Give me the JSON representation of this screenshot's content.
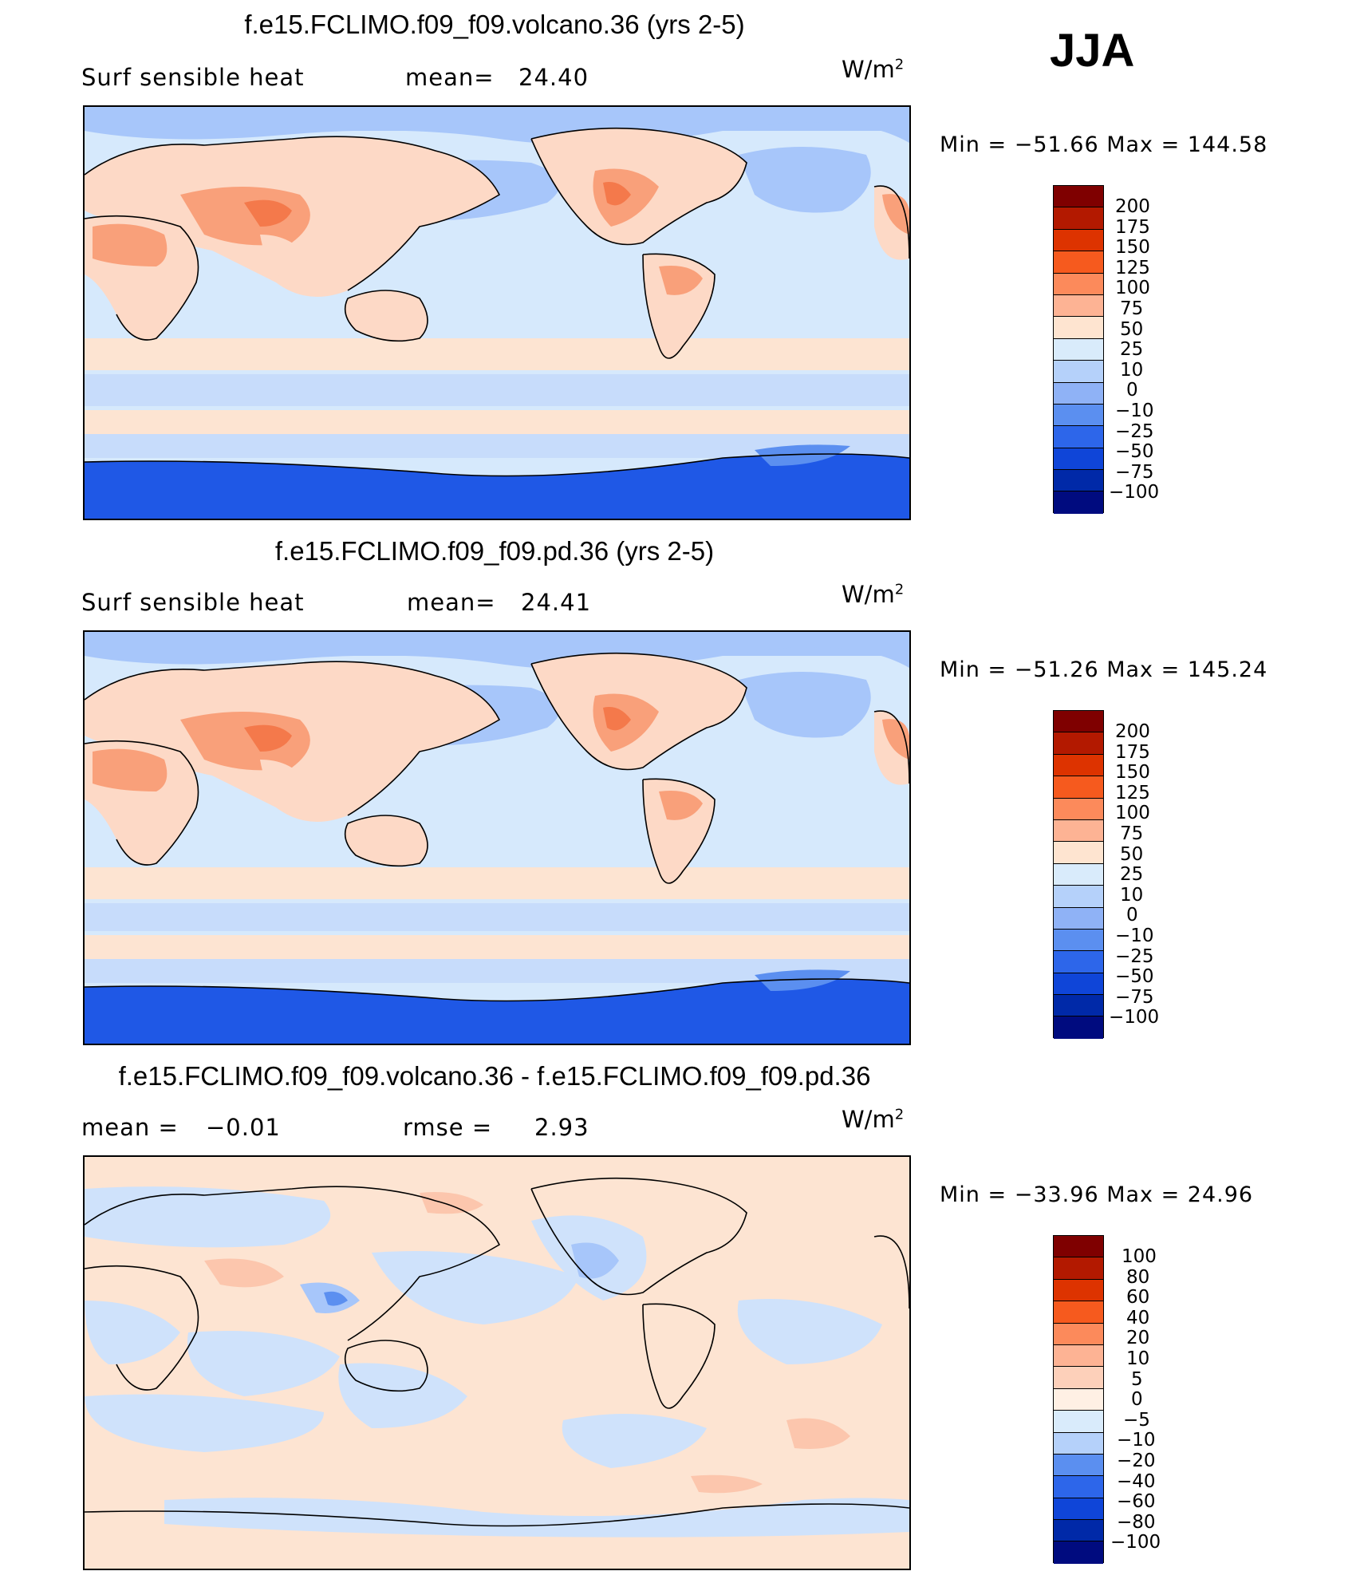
{
  "season": "JJA",
  "panels": [
    {
      "title": "f.e15.FCLIMO.f09_f09.volcano.36 (yrs 2-5)",
      "variable": "Surf  sensible  heat",
      "stat_label": "mean=",
      "stat_value": "24.40",
      "units_base": "W/m",
      "units_exp": "2",
      "minmax": "Min  =  −51.66  Max  =  144.58",
      "colorbar_labels": [
        "200",
        "175",
        "150",
        "125",
        "100",
        "75",
        "50",
        "25",
        "10",
        "0",
        "−10",
        "−25",
        "−50",
        "−75",
        "−100"
      ]
    },
    {
      "title": "f.e15.FCLIMO.f09_f09.pd.36 (yrs 2-5)",
      "variable": "Surf  sensible  heat",
      "stat_label": "mean=",
      "stat_value": "24.41",
      "units_base": "W/m",
      "units_exp": "2",
      "minmax": "Min  =  −51.26  Max  =  145.24",
      "colorbar_labels": [
        "200",
        "175",
        "150",
        "125",
        "100",
        "75",
        "50",
        "25",
        "10",
        "0",
        "−10",
        "−25",
        "−50",
        "−75",
        "−100"
      ]
    },
    {
      "title": "f.e15.FCLIMO.f09_f09.volcano.36 - f.e15.FCLIMO.f09_f09.pd.36",
      "stat_label": "mean  =",
      "stat_value": "−0.01",
      "stat2_label": "rmse  =",
      "stat2_value": "2.93",
      "units_base": "W/m",
      "units_exp": "2",
      "minmax": "Min  =  −33.96  Max  =   24.96",
      "colorbar_labels": [
        "100",
        "80",
        "60",
        "40",
        "20",
        "10",
        "5",
        "0",
        "−5",
        "−10",
        "−20",
        "−40",
        "−60",
        "−80",
        "−100"
      ]
    }
  ],
  "colors": {
    "colorbar": [
      "#7f0000",
      "#b31900",
      "#dd3300",
      "#f65a1e",
      "#fc8a5b",
      "#fdb394",
      "#fee4d0",
      "#d9ebfb",
      "#b5d1fa",
      "#8fb2f6",
      "#5b8ff0",
      "#2d66ea",
      "#0f45d8",
      "#0029a8",
      "#000b7f"
    ],
    "ocean_main": "#d6e9fc",
    "land_warm": "#fdd9c6",
    "land_hot": "#f9a07a",
    "polar_cold": "#1f58e6",
    "cool_band": "#a7c6fa",
    "diff_warm": "#fde0d0",
    "diff_cool": "#cfe2fb"
  }
}
